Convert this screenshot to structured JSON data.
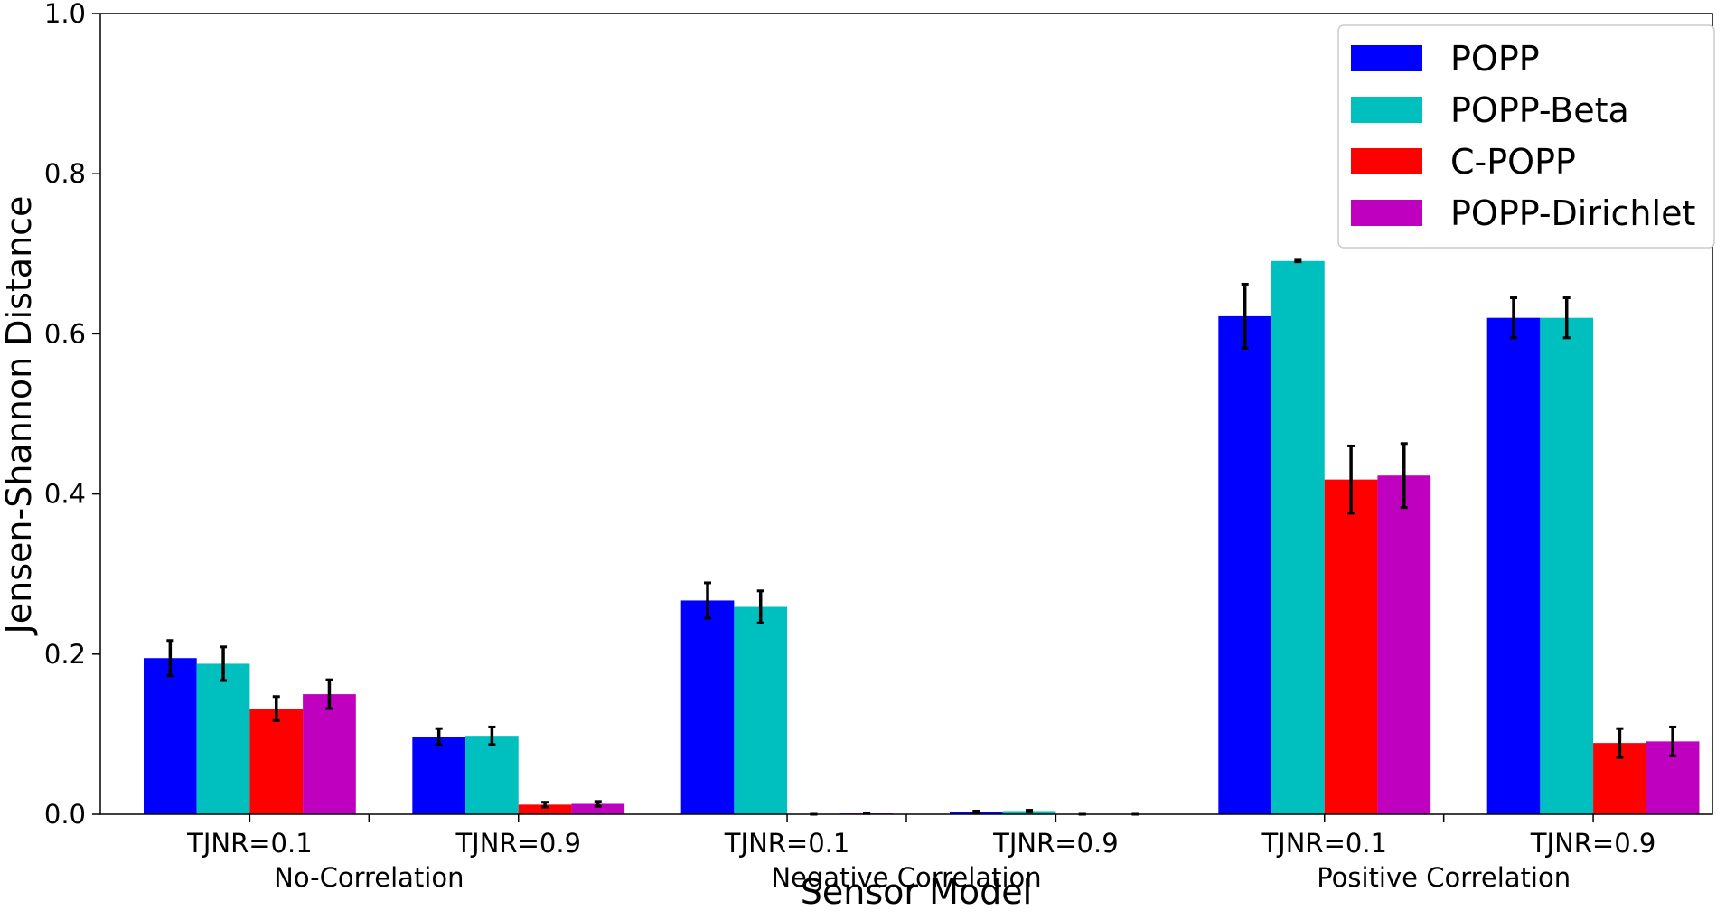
{
  "chart_data": {
    "type": "bar",
    "title": "",
    "xlabel": "Sensor Model",
    "ylabel": "Jensen-Shannon Distance",
    "ylim": [
      0,
      1.0
    ],
    "yticks": [
      "0.0",
      "0.2",
      "0.4",
      "0.6",
      "0.8",
      "1.0"
    ],
    "grid": false,
    "legend_position": "top-right",
    "groups": [
      "No-Correlation",
      "Negative Correlation",
      "Positive Correlation"
    ],
    "categories": [
      "TJNR=0.1",
      "TJNR=0.9",
      "TJNR=0.1",
      "TJNR=0.9",
      "TJNR=0.1",
      "TJNR=0.9"
    ],
    "series": [
      {
        "name": "POPP",
        "color": "#0000ff",
        "values": [
          0.195,
          0.097,
          0.267,
          0.003,
          0.622,
          0.62
        ],
        "errors": [
          0.022,
          0.01,
          0.022,
          0.001,
          0.04,
          0.025
        ]
      },
      {
        "name": "POPP-Beta",
        "color": "#00bfbf",
        "values": [
          0.188,
          0.098,
          0.259,
          0.004,
          0.691,
          0.62
        ],
        "errors": [
          0.021,
          0.011,
          0.02,
          0.001,
          0.001,
          0.025
        ]
      },
      {
        "name": "C-POPP",
        "color": "#ff0000",
        "values": [
          0.132,
          0.012,
          0.0,
          0.0,
          0.418,
          0.089
        ],
        "errors": [
          0.015,
          0.003,
          0.0,
          0.0,
          0.042,
          0.018
        ]
      },
      {
        "name": "POPP-Dirichlet",
        "color": "#bf00bf",
        "values": [
          0.15,
          0.013,
          0.001,
          0.0,
          0.423,
          0.091
        ],
        "errors": [
          0.018,
          0.003,
          0.0,
          0.0,
          0.04,
          0.018
        ]
      }
    ]
  }
}
